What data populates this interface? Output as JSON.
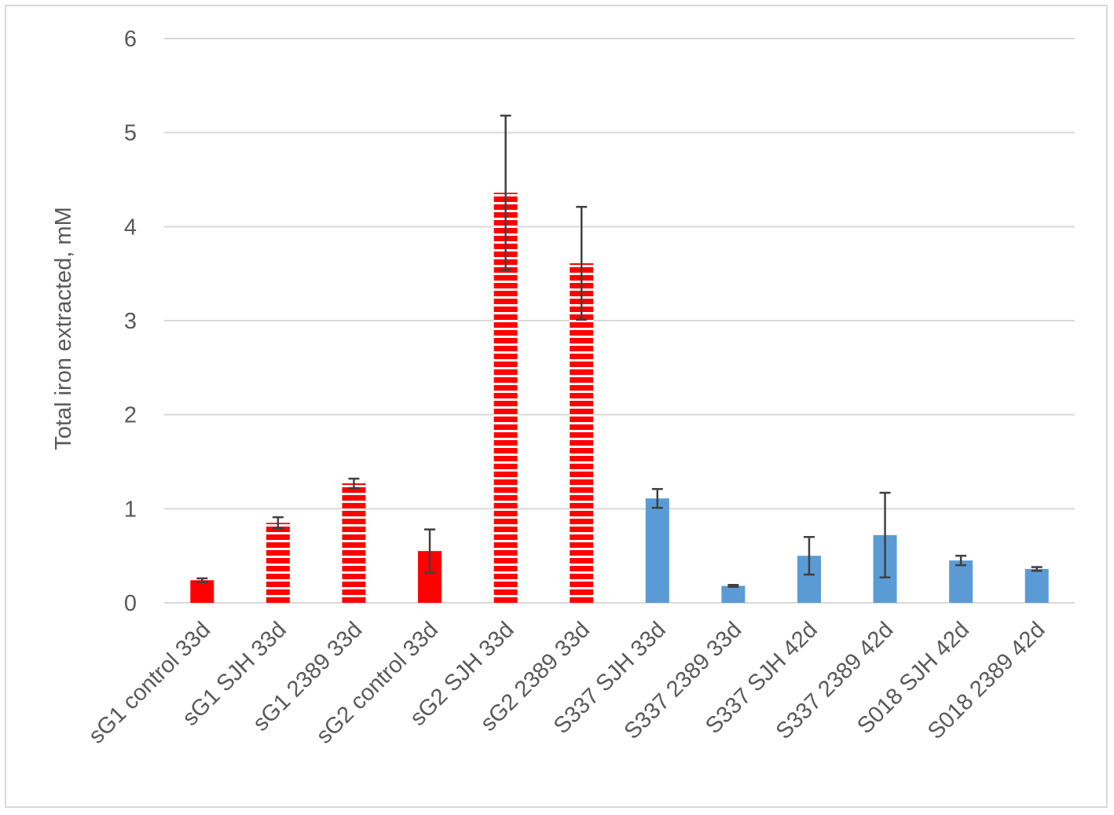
{
  "chart_data": {
    "type": "bar",
    "title": "",
    "xlabel": "",
    "ylabel": "Total iron extracted, mM",
    "ylim": [
      0,
      6
    ],
    "yticks": [
      0,
      1,
      2,
      3,
      4,
      5,
      6
    ],
    "grid": true,
    "legend": "none",
    "categories": [
      "sG1 control 33d",
      "sG1 SJH 33d",
      "sG1 2389 33d",
      "sG2 control 33d",
      "sG2 SJH 33d",
      "sG2 2389 33d",
      "S337 SJH 33d",
      "S337 2389 33d",
      "S337 SJH 42d",
      "S337 2389 42d",
      "S018 SJH 42d",
      "S018 2389 42d"
    ],
    "values": [
      0.24,
      0.85,
      1.27,
      0.55,
      4.36,
      3.61,
      1.11,
      0.18,
      0.5,
      0.72,
      0.45,
      0.36
    ],
    "errors": [
      0.02,
      0.06,
      0.05,
      0.23,
      0.82,
      0.6,
      0.1,
      0.01,
      0.2,
      0.45,
      0.05,
      0.02
    ],
    "fills": [
      "solid-red",
      "striped-red",
      "striped-red",
      "solid-red",
      "striped-red",
      "striped-red",
      "solid-blue",
      "solid-blue",
      "solid-blue",
      "solid-blue",
      "solid-blue",
      "solid-blue"
    ],
    "colors": {
      "red": "#ff0000",
      "blue": "#5b9bd5",
      "error_bar": "#404040",
      "grid": "#d9d9d9",
      "text": "#595959"
    }
  }
}
